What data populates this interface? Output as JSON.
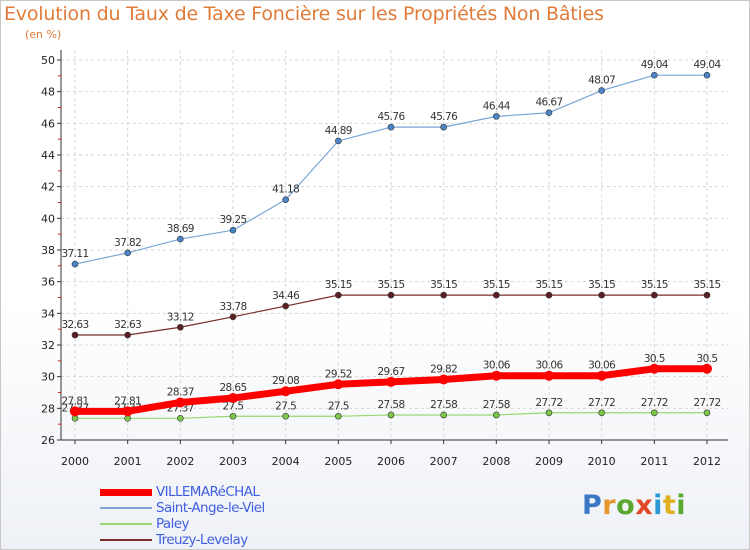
{
  "title": "Evolution du Taux de Taxe Foncière sur les Propriétés Non Bâties",
  "unit_label": "(en %)",
  "logo": {
    "text": "Proxiti",
    "letter_colors": [
      "#3a78c6",
      "#e8952b",
      "#5aa830",
      "#e04a2a",
      "#2b9bd6",
      "#e0b020",
      "#5aa830"
    ]
  },
  "chart_data": {
    "type": "line",
    "title": "Evolution du Taux de Taxe Foncière sur les Propriétés Non Bâties",
    "ylabel": "(en %)",
    "xlabel": "",
    "x": [
      "2000",
      "2001",
      "2002",
      "2003",
      "2004",
      "2005",
      "2006",
      "2007",
      "2008",
      "2009",
      "2010",
      "2011",
      "2012"
    ],
    "ylim": [
      26,
      50
    ],
    "yticks": [
      26,
      28,
      30,
      32,
      34,
      36,
      38,
      40,
      42,
      44,
      46,
      48,
      50
    ],
    "grid": true,
    "legend_position": "bottom-left",
    "series": [
      {
        "name": "Saint-Ange-le-Viel",
        "color": "#7aa6d6",
        "marker": "#4a86c8",
        "width": 1.2,
        "values": [
          37.11,
          37.82,
          38.69,
          39.25,
          41.18,
          44.89,
          45.76,
          45.76,
          46.44,
          46.67,
          48.07,
          49.04,
          49.04
        ],
        "labels": [
          "37.11",
          "37.82",
          "38.69",
          "39.25",
          "41.18",
          "44.89",
          "45.76",
          "45.76",
          "46.44",
          "46.67",
          "48.07",
          "49.04",
          "49.04"
        ]
      },
      {
        "name": "Treuzy-Levelay",
        "color": "#7a2d2d",
        "marker": "#5c1f1f",
        "width": 1.2,
        "values": [
          32.63,
          32.63,
          33.12,
          33.78,
          34.46,
          35.15,
          35.15,
          35.15,
          35.15,
          35.15,
          35.15,
          35.15,
          35.15
        ],
        "labels": [
          "32.63",
          "32.63",
          "33.12",
          "33.78",
          "34.46",
          "35.15",
          "35.15",
          "35.15",
          "35.15",
          "35.15",
          "35.15",
          "35.15",
          "35.15"
        ]
      },
      {
        "name": "Paley",
        "color": "#99d870",
        "marker": "#7cc84a",
        "width": 1.2,
        "values": [
          27.37,
          27.37,
          27.37,
          27.5,
          27.5,
          27.5,
          27.58,
          27.58,
          27.58,
          27.72,
          27.72,
          27.72,
          27.72
        ],
        "labels": [
          "27.37",
          "27.37",
          "27.37",
          "27.5",
          "27.5",
          "27.5",
          "27.58",
          "27.58",
          "27.58",
          "27.72",
          "27.72",
          "27.72",
          "27.72"
        ]
      },
      {
        "name": "VILLEMARéCHAL",
        "color": "#ff0000",
        "marker": "#ff0000",
        "width": 7,
        "values": [
          27.81,
          27.81,
          28.37,
          28.65,
          29.08,
          29.52,
          29.67,
          29.82,
          30.06,
          30.06,
          30.06,
          30.5,
          30.5
        ],
        "labels": [
          "27.81",
          "27.81",
          "28.37",
          "28.65",
          "29.08",
          "29.52",
          "29.67",
          "29.82",
          "30.06",
          "30.06",
          "30.06",
          "30.5",
          "30.5"
        ]
      }
    ],
    "legend": [
      {
        "name": "VILLEMARéCHAL",
        "color": "#ff0000",
        "thick": true
      },
      {
        "name": "Saint-Ange-le-Viel",
        "color": "#7aa6d6",
        "thick": false
      },
      {
        "name": "Paley",
        "color": "#99d870",
        "thick": false
      },
      {
        "name": "Treuzy-Levelay",
        "color": "#7a2d2d",
        "thick": false
      }
    ]
  }
}
